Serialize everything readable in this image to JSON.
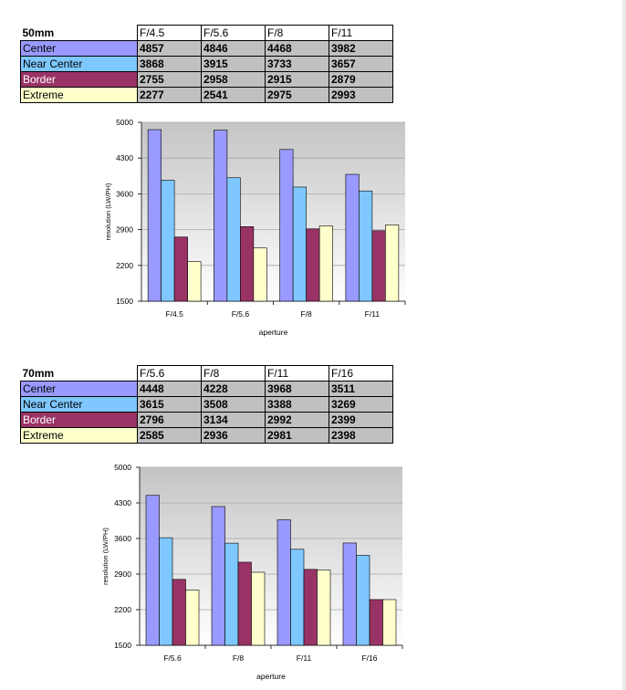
{
  "colors": {
    "Center": "#9999ff",
    "Near Center": "#7ec8ff",
    "Border": "#993366",
    "Extreme": "#ffffcc"
  },
  "tables": [
    {
      "title": "50mm",
      "columns": [
        "F/4.5",
        "F/5.6",
        "F/8",
        "F/11"
      ],
      "rows": [
        {
          "label": "Center",
          "values": [
            "4857",
            "4846",
            "4468",
            "3982"
          ]
        },
        {
          "label": "Near Center",
          "values": [
            "3868",
            "3915",
            "3733",
            "3657"
          ]
        },
        {
          "label": "Border",
          "values": [
            "2755",
            "2958",
            "2915",
            "2879"
          ]
        },
        {
          "label": "Extreme",
          "values": [
            "2277",
            "2541",
            "2975",
            "2993"
          ]
        }
      ]
    },
    {
      "title": "70mm",
      "columns": [
        "F/5.6",
        "F/8",
        "F/11",
        "F/16"
      ],
      "rows": [
        {
          "label": "Center",
          "values": [
            "4448",
            "4228",
            "3968",
            "3511"
          ]
        },
        {
          "label": "Near Center",
          "values": [
            "3615",
            "3508",
            "3388",
            "3269"
          ]
        },
        {
          "label": "Border",
          "values": [
            "2796",
            "3134",
            "2992",
            "2399"
          ]
        },
        {
          "label": "Extreme",
          "values": [
            "2585",
            "2936",
            "2981",
            "2398"
          ]
        }
      ]
    }
  ],
  "chart_data": [
    {
      "type": "bar",
      "title": "",
      "categories": [
        "F/4.5",
        "F/5.6",
        "F/8",
        "F/11"
      ],
      "series": [
        {
          "name": "Center",
          "values": [
            4857,
            4846,
            4468,
            3982
          ]
        },
        {
          "name": "Near Center",
          "values": [
            3868,
            3915,
            3733,
            3657
          ]
        },
        {
          "name": "Border",
          "values": [
            2755,
            2958,
            2915,
            2879
          ]
        },
        {
          "name": "Extreme",
          "values": [
            2277,
            2541,
            2975,
            2993
          ]
        }
      ],
      "xlabel": "aperture",
      "ylabel": "resolution (LW/PH)",
      "ylim": [
        1500,
        5000
      ],
      "yticks": [
        "5000",
        "4300",
        "3600",
        "2900",
        "2200",
        "1500"
      ],
      "grid": true,
      "legend": "none"
    },
    {
      "type": "bar",
      "title": "",
      "categories": [
        "F/5.6",
        "F/8",
        "F/11",
        "F/16"
      ],
      "series": [
        {
          "name": "Center",
          "values": [
            4448,
            4228,
            3968,
            3511
          ]
        },
        {
          "name": "Near Center",
          "values": [
            3615,
            3508,
            3388,
            3269
          ]
        },
        {
          "name": "Border",
          "values": [
            2796,
            3134,
            2992,
            2399
          ]
        },
        {
          "name": "Extreme",
          "values": [
            2585,
            2936,
            2981,
            2398
          ]
        }
      ],
      "xlabel": "aperture",
      "ylabel": "resolution (LW/PH)",
      "ylim": [
        1500,
        5000
      ],
      "yticks": [
        "5000",
        "4300",
        "3600",
        "2900",
        "2200",
        "1500"
      ],
      "grid": true,
      "legend": "none"
    }
  ]
}
